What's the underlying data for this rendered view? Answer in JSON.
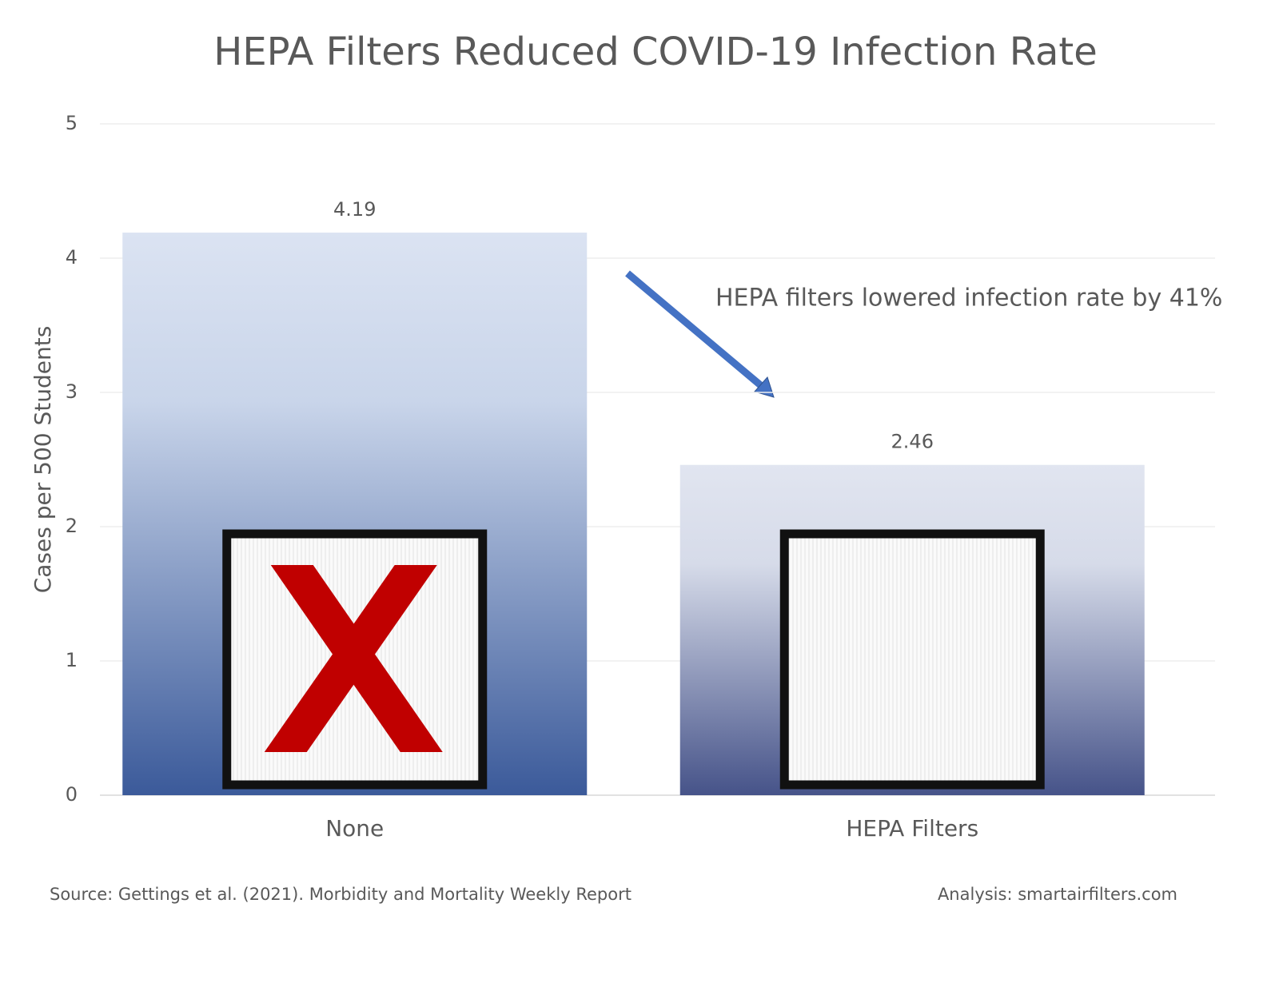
{
  "chart_data": {
    "type": "bar",
    "title": "HEPA Filters Reduced COVID-19 Infection Rate",
    "y_label": "Cases per 500 Students",
    "categories": [
      "None",
      "HEPA Filters"
    ],
    "values": [
      4.19,
      2.46
    ],
    "colors": [
      "#3b5a9a",
      "#465389"
    ],
    "ylim": [
      0,
      5
    ],
    "yticks": [
      0,
      1,
      2,
      3,
      4,
      5
    ],
    "grid": true,
    "annotation": "HEPA filters lowered infection rate by 41%",
    "source": "Source: Gettings et al. (2021). Morbidity and Mortality Weekly Report",
    "credit": "Analysis: smartairfilters.com"
  }
}
